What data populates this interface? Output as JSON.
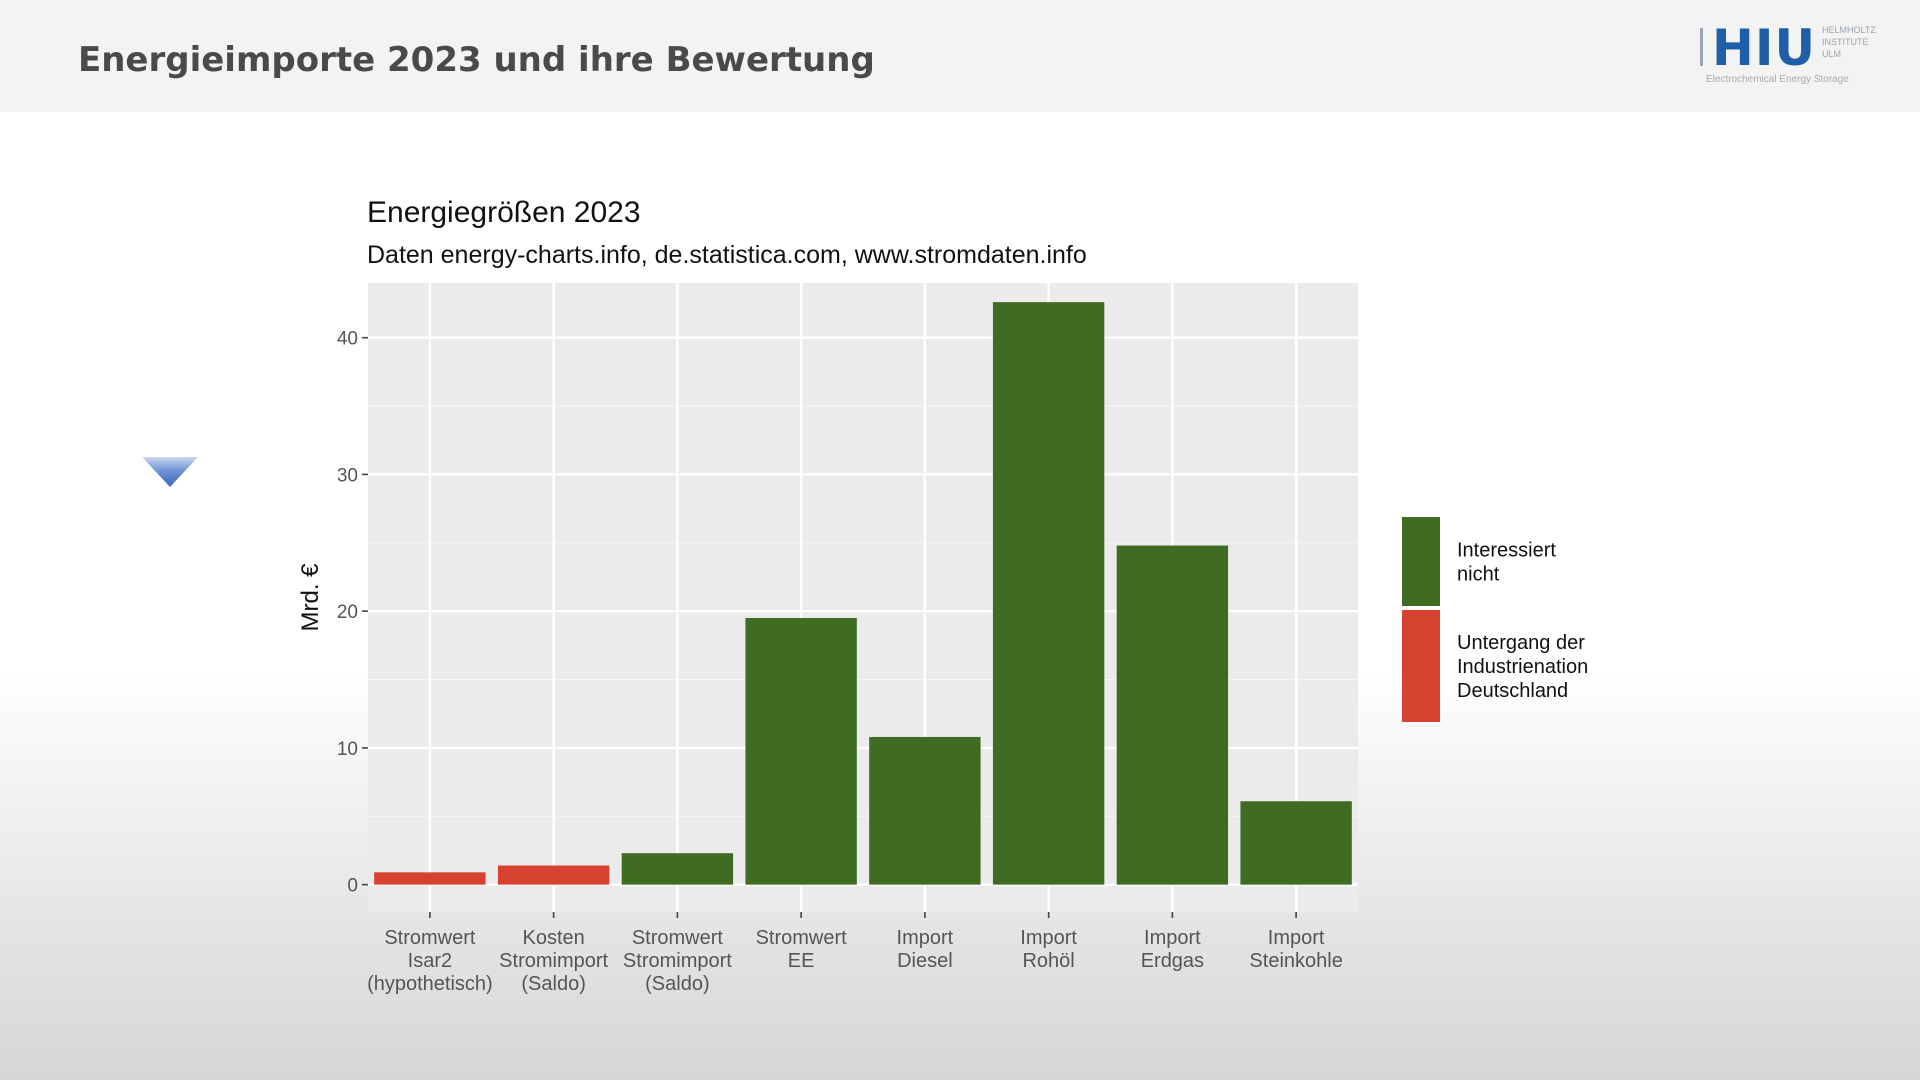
{
  "slide": {
    "title": "Energieimporte 2023 und ihre Bewertung"
  },
  "logo": {
    "mark": "HIU",
    "side_lines": [
      "HELMHOLTZ",
      "INSTITUTE",
      "ULM"
    ],
    "tagline": "Electrochemical Energy Storage"
  },
  "navigation": {
    "icon": "triangle-down-icon",
    "color": "#4a78c8"
  },
  "chart_data": {
    "type": "bar",
    "title": "Energiegrößen 2023",
    "subtitle": "Daten energy-charts.info, de.statistica.com, www.stromdaten.info",
    "ylabel": "Mrd. €",
    "xlabel": "",
    "ylim": [
      -2,
      44
    ],
    "yticks": [
      0,
      10,
      20,
      30,
      40
    ],
    "grid": true,
    "legend_position": "right",
    "categories": [
      [
        "Stromwert",
        "Isar2",
        "(hypothetisch)"
      ],
      [
        "Kosten",
        "Stromimport",
        "(Saldo)"
      ],
      [
        "Stromwert",
        "Stromimport",
        "(Saldo)"
      ],
      [
        "Stromwert",
        "EE"
      ],
      [
        "Import",
        "Diesel"
      ],
      [
        "Import",
        "Rohöl"
      ],
      [
        "Import",
        "Erdgas"
      ],
      [
        "Import",
        "Steinkohle"
      ]
    ],
    "values": [
      0.9,
      1.4,
      2.3,
      19.5,
      10.8,
      42.6,
      24.8,
      6.1
    ],
    "groups": [
      1,
      1,
      0,
      0,
      0,
      0,
      0,
      0
    ],
    "legend": [
      {
        "label": [
          "Interessiert",
          "nicht"
        ],
        "color": "#3f6b22"
      },
      {
        "label": [
          "Untergang der",
          "Industrienation",
          "Deutschland"
        ],
        "color": "#d7412f"
      }
    ],
    "panel_background": "#ebebeb"
  }
}
